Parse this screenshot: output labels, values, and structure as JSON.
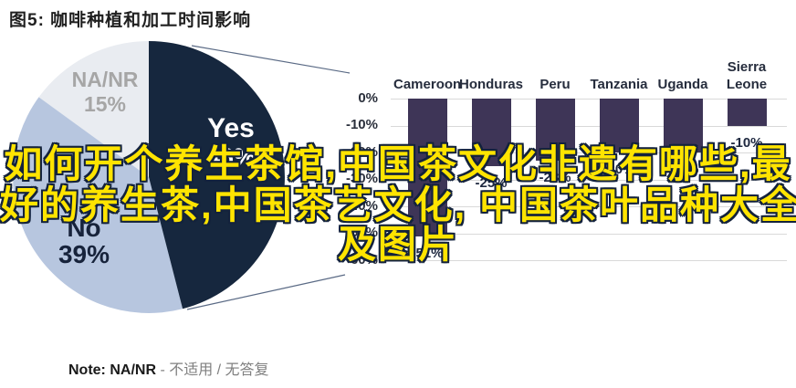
{
  "title": "图5: 咖啡种植和加工时间影响",
  "watermark": {
    "line1": "如何开个养生茶馆,中国茶文化非遗有哪些,最",
    "line2": "好的养生茶,中国茶艺文化, 中国茶叶品种大全",
    "line3": "及图片",
    "color": "#ffe400",
    "outline_color": "#13223c"
  },
  "chart_data": [
    {
      "type": "pie",
      "title": "图5: 咖啡种植和加工时间影响",
      "slices": [
        {
          "label": "Yes",
          "pct_label": "46%",
          "value": 46,
          "color": "#16273e"
        },
        {
          "label": "No",
          "pct_label": "39%",
          "value": 39,
          "color": "#b7c6df"
        },
        {
          "label": "NA/NR",
          "pct_label": "15%",
          "value": 15,
          "color": "#e9ecf1"
        }
      ],
      "note_bold": "Note: NA/NR",
      "note_rest": " - 不适用 / 无答复",
      "legend_position": "inside"
    },
    {
      "type": "bar",
      "categories": [
        "Cameroon",
        "Honduras",
        "Peru",
        "Tanzania",
        "Uganda",
        "Sierra Leone"
      ],
      "values": [
        -51,
        -25,
        -23,
        -20,
        -20,
        -10
      ],
      "labels": [
        "-51%",
        "-25%",
        "-23%",
        "-20%",
        "-20%",
        "-10%"
      ],
      "yticks": [
        "0%",
        "-10%",
        "-20%",
        "-30%",
        "-40%",
        "-50%",
        "-60%"
      ],
      "ylim": [
        -60,
        0
      ],
      "grid": true,
      "bar_color": "#3e3557",
      "grid_color": "#d9d9d9",
      "axis_text_color": "#2b303c",
      "value_label_color": "#1f2940"
    }
  ]
}
